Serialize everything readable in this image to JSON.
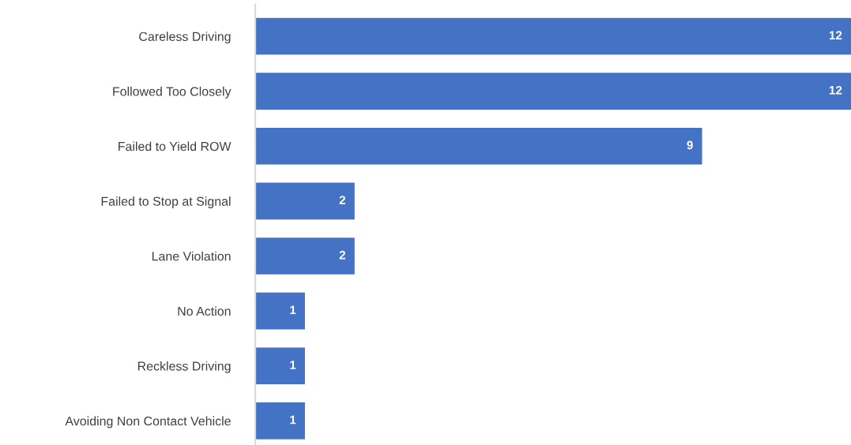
{
  "chart_data": {
    "type": "bar",
    "orientation": "horizontal",
    "categories": [
      "Careless Driving",
      "Followed Too Closely",
      "Failed to Yield ROW",
      "Failed to Stop at Signal",
      "Lane Violation",
      "No Action",
      "Reckless Driving",
      "Avoiding Non Contact Vehicle"
    ],
    "values": [
      12,
      12,
      9,
      2,
      2,
      1,
      1,
      1
    ],
    "color": "#4472c4",
    "xlim": [
      0,
      12
    ],
    "data_labels": true,
    "grid": false,
    "legend": false
  }
}
